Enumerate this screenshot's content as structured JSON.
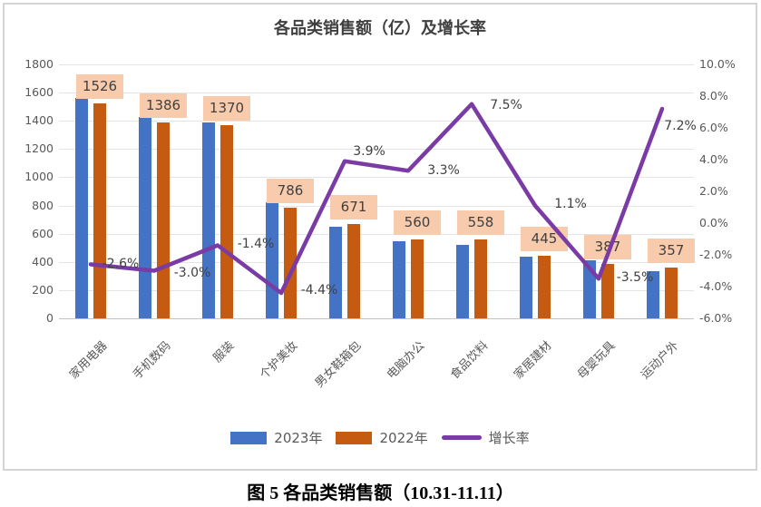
{
  "title": "各品类销售额（亿）及增长率",
  "caption": "图 5 各品类销售额（10.31-11.11）",
  "chart_data": {
    "type": "bar+line",
    "categories": [
      "家用电器",
      "手机数码",
      "服装",
      "个护美妆",
      "男女鞋箱包",
      "电脑办公",
      "食品饮料",
      "家居建材",
      "母婴玩具",
      "运动户外"
    ],
    "series": [
      {
        "name": "2023年",
        "type": "bar",
        "color": "#4472c4",
        "values": [
          1560,
          1425,
          1390,
          820,
          650,
          545,
          520,
          440,
          410,
          335
        ]
      },
      {
        "name": "2022年",
        "type": "bar",
        "color": "#c55a11",
        "values": [
          1526,
          1386,
          1370,
          786,
          671,
          560,
          558,
          445,
          387,
          357
        ],
        "data_labels": [
          "1526",
          "1386",
          "1370",
          "786",
          "671",
          "560",
          "558",
          "445",
          "387",
          "357"
        ]
      },
      {
        "name": "增长率",
        "type": "line",
        "axis": "right",
        "color": "#7a3ba5",
        "values": [
          -2.6,
          -3.0,
          -1.4,
          -4.4,
          3.9,
          3.3,
          7.5,
          1.1,
          -3.5,
          7.2
        ],
        "data_labels": [
          "-2.6%",
          "-3.0%",
          "-1.4%",
          "-4.4%",
          "3.9%",
          "3.3%",
          "7.5%",
          "1.1%",
          "-3.5%",
          "7.2%"
        ]
      }
    ],
    "left_axis": {
      "min": 0,
      "max": 1800,
      "step": 200,
      "tick_labels": [
        "1800",
        "1600",
        "1400",
        "1200",
        "1000",
        "800",
        "600",
        "400",
        "200",
        "0"
      ]
    },
    "right_axis": {
      "min": -6,
      "max": 10,
      "step": 2,
      "tick_labels": [
        "10.0%",
        "8.0%",
        "6.0%",
        "4.0%",
        "2.0%",
        "0.0%",
        "-2.0%",
        "-4.0%",
        "-6.0%"
      ]
    },
    "grid": true,
    "legend_position": "bottom",
    "colors": {
      "bar_2023": "#4472c4",
      "bar_2022": "#c55a11",
      "growth_line": "#7a3ba5",
      "data_label_bg": "#f8cbad",
      "data_label_text": "#404040",
      "axis_text": "#595959",
      "title_text": "#3f3f3f",
      "gridline": "#e4e4e4"
    }
  }
}
